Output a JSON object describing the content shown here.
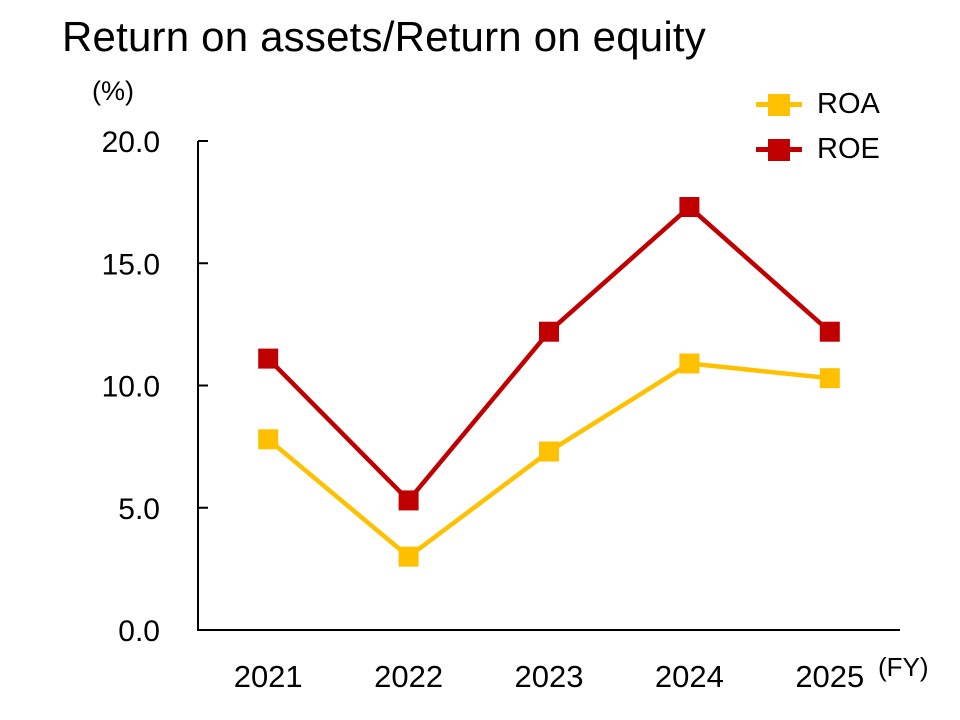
{
  "page": {
    "title": "Return on assets/Return on equity",
    "unit_label": "(%)",
    "fy_label": "(FY)"
  },
  "chart_data": {
    "type": "line",
    "title": "Return on assets/Return on equity",
    "ylabel": "(%)",
    "xlabel": "(FY)",
    "categories": [
      "2021",
      "2022",
      "2023",
      "2024",
      "2025"
    ],
    "series": [
      {
        "name": "ROA",
        "color": "#FFC000",
        "values": [
          7.8,
          3.0,
          7.3,
          10.9,
          10.3
        ]
      },
      {
        "name": "ROE",
        "color": "#C00000",
        "values": [
          11.1,
          5.3,
          12.2,
          17.3,
          12.2
        ]
      }
    ],
    "ylim": [
      0,
      20
    ],
    "ytick_step": 5,
    "ytick_labels": [
      "0.0",
      "5.0",
      "10.0",
      "15.0",
      "20.0"
    ],
    "grid": false,
    "legend_position": "top-right",
    "marker": "square",
    "line_width": 4.5,
    "marker_size": 20,
    "axis_color": "#000000",
    "text_color": "#000000"
  }
}
